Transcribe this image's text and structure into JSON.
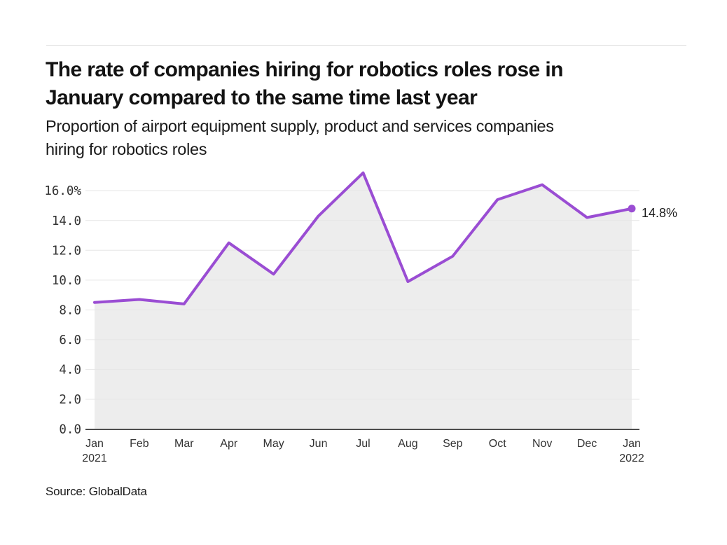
{
  "header": {
    "title_lines": [
      "The rate of companies hiring for robotics roles rose in",
      "January compared to the same time last year"
    ],
    "subtitle_lines": [
      "Proportion of airport equipment supply, product and services companies",
      "hiring for robotics roles"
    ]
  },
  "footer": {
    "source": "Source: GlobalData"
  },
  "chart_data": {
    "type": "area",
    "title": "The rate of companies hiring for robotics roles rose in January compared to the same time last year",
    "subtitle": "Proportion of airport equipment supply, product and services companies hiring for robotics roles",
    "categories": [
      "Jan",
      "Feb",
      "Mar",
      "Apr",
      "May",
      "Jun",
      "Jul",
      "Aug",
      "Sep",
      "Oct",
      "Nov",
      "Dec",
      "Jan"
    ],
    "x_sub_labels": [
      "2021",
      "",
      "",
      "",
      "",
      "",
      "",
      "",
      "",
      "",
      "",
      "",
      "2022"
    ],
    "values": [
      8.5,
      8.7,
      8.4,
      12.5,
      10.4,
      14.3,
      17.2,
      9.9,
      11.6,
      15.4,
      16.4,
      14.2,
      14.8
    ],
    "last_point_label": "14.8%",
    "y_ticks": [
      0,
      2,
      4,
      6,
      8,
      10,
      12,
      14,
      16
    ],
    "y_tick_labels": [
      "0.0",
      "2.0",
      "4.0",
      "6.0",
      "8.0",
      "10.0",
      "12.0",
      "14.0",
      "16.0%"
    ],
    "ylim": [
      0,
      17.5
    ],
    "xlabel": "",
    "ylabel": "",
    "grid": true,
    "legend_position": "none",
    "colors": {
      "line": "#9A4DD3",
      "fill": "#EDEDED",
      "grid": "#E6E6E6",
      "axis": "#4D4D4D",
      "tick_text": "#333333",
      "label_text": "#1A1A1A"
    }
  }
}
